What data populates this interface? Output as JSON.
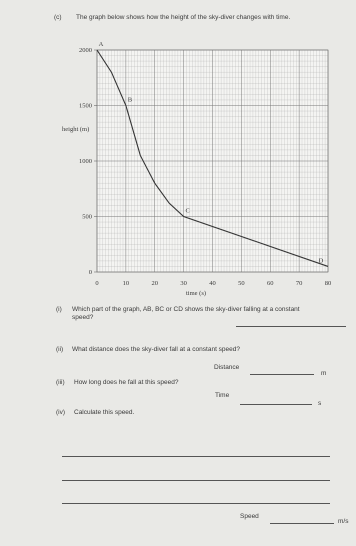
{
  "intro": {
    "number": "(c)",
    "text": "The graph below shows how the height of the sky-diver changes with time."
  },
  "chart_data": {
    "type": "line",
    "y_label": "height (m)",
    "x_label": "time (s)",
    "x": [
      0,
      5,
      10,
      15,
      20,
      25,
      30,
      80
    ],
    "values": [
      2000,
      1800,
      1500,
      1050,
      800,
      620,
      500,
      50
    ],
    "point_labels": [
      "A",
      null,
      "B",
      null,
      null,
      null,
      "C",
      "D"
    ],
    "color": "#333333",
    "xlim": [
      0,
      80
    ],
    "ylim": [
      0,
      2000
    ],
    "xticks": [
      0,
      10,
      20,
      30,
      40,
      50,
      60,
      70,
      80
    ],
    "yticks": [
      0,
      500,
      1000,
      1500,
      2000
    ],
    "grid": true,
    "minor_grid": true
  },
  "questions": [
    {
      "number": "(i)",
      "text": "Which part of the graph, AB, BC or CD shows the sky-diver falling at a constant speed?"
    },
    {
      "number": "(ii)",
      "text": "What distance does the sky-diver fall at a constant speed?",
      "answer_label": "Distance",
      "unit": "m"
    },
    {
      "number": "(iii)",
      "text": "How long does he fall at this speed?",
      "answer_label": "Time",
      "unit": "s"
    },
    {
      "number": "(iv)",
      "text": "Calculate this speed.",
      "answer_label": "Speed",
      "unit": "m/s"
    }
  ]
}
